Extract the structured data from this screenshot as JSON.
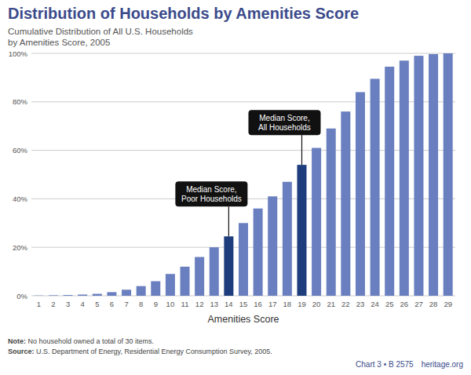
{
  "chart_data": {
    "type": "bar",
    "title": "Distribution of Households by Amenities Score",
    "subtitle": [
      "Cumulative Distribution of All U.S. Households",
      "by Amenities Score, 2005"
    ],
    "x_label": "Amenities Score",
    "categories": [
      "1",
      "2",
      "3",
      "4",
      "5",
      "6",
      "7",
      "8",
      "9",
      "10",
      "11",
      "12",
      "13",
      "14",
      "15",
      "16",
      "17",
      "18",
      "19",
      "20",
      "21",
      "22",
      "23",
      "24",
      "25",
      "26",
      "27",
      "28",
      "29"
    ],
    "values": [
      0.1,
      0.2,
      0.3,
      0.5,
      0.8,
      1.5,
      2.5,
      4,
      6,
      9,
      12,
      16,
      20,
      24.5,
      30,
      36,
      41,
      47,
      54,
      61,
      69,
      76,
      84,
      89.5,
      94.5,
      97,
      99,
      99.7,
      100
    ],
    "colors": [
      "#6a7fbf",
      "#6a7fbf",
      "#6a7fbf",
      "#6a7fbf",
      "#6a7fbf",
      "#6a7fbf",
      "#6a7fbf",
      "#6a7fbf",
      "#6a7fbf",
      "#6a7fbf",
      "#6a7fbf",
      "#6a7fbf",
      "#6a7fbf",
      "#1d3d7c",
      "#6a7fbf",
      "#6a7fbf",
      "#6a7fbf",
      "#6a7fbf",
      "#1d3d7c",
      "#6a7fbf",
      "#6a7fbf",
      "#6a7fbf",
      "#6a7fbf",
      "#6a7fbf",
      "#6a7fbf",
      "#6a7fbf",
      "#6a7fbf",
      "#6a7fbf",
      "#6a7fbf"
    ],
    "ylim": [
      0,
      100
    ],
    "yticks": [
      {
        "value": 0,
        "label": "0%"
      },
      {
        "value": 20,
        "label": "20%"
      },
      {
        "value": 40,
        "label": "40%"
      },
      {
        "value": 60,
        "label": "60%"
      },
      {
        "value": 80,
        "label": "80%"
      },
      {
        "value": 100,
        "label": "100%"
      }
    ],
    "grid": true,
    "annotations": [
      {
        "x": "14",
        "text": [
          "Median Score,",
          "Poor Households"
        ]
      },
      {
        "x": "19",
        "text": [
          "Median Score,",
          "All Households"
        ]
      }
    ],
    "notes": [
      "Note: No household owned a total of 30 items.",
      "Source: U.S. Department of Energy, Residential Energy Consumption Survey, 2005."
    ],
    "footer": [
      "Chart 3 • B 2575",
      "heritage.org"
    ]
  }
}
